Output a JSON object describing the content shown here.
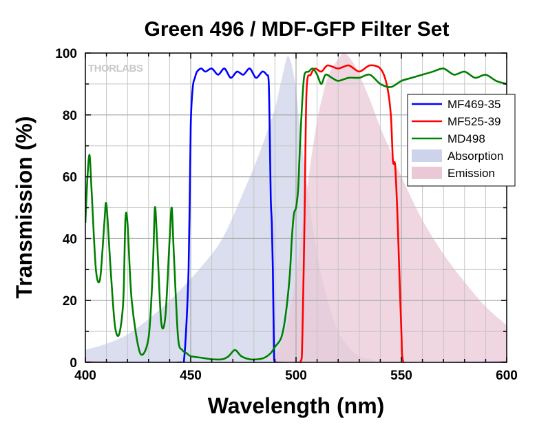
{
  "chart_data": {
    "type": "line",
    "title": "Green 496 / MDF-GFP Filter Set",
    "xlabel": "Wavelength (nm)",
    "ylabel": "Transmission (%)",
    "xlim": [
      400,
      600
    ],
    "ylim": [
      0,
      100
    ],
    "x_ticks": [
      400,
      450,
      500,
      550,
      600
    ],
    "y_ticks": [
      0,
      20,
      40,
      60,
      80,
      100
    ],
    "grid": true,
    "legend_position": "top-right",
    "logo": "THORLABS",
    "colors": {
      "MF469-35": "#0000ff",
      "MF525-39": "#ff0000",
      "MD498": "#008000",
      "Absorption": "#cdd3ea",
      "Emission": "#ebc8d6"
    },
    "series": [
      {
        "name": "Absorption",
        "kind": "area",
        "x": [
          400,
          410,
          420,
          430,
          440,
          450,
          460,
          465,
          470,
          475,
          480,
          485,
          488,
          490,
          492,
          494,
          496,
          498,
          500,
          502,
          505,
          510,
          515,
          520,
          525,
          530,
          535,
          538
        ],
        "y": [
          4,
          6,
          9,
          14,
          20,
          27,
          35,
          40,
          47,
          55,
          63,
          72,
          78,
          82,
          88,
          94,
          99,
          96,
          88,
          75,
          58,
          35,
          20,
          10,
          5,
          2,
          1,
          0
        ]
      },
      {
        "name": "Emission",
        "kind": "area",
        "x": [
          490,
          495,
          500,
          505,
          510,
          515,
          520,
          523,
          527,
          530,
          535,
          540,
          545,
          550,
          560,
          570,
          580,
          590,
          600
        ],
        "y": [
          2,
          10,
          28,
          55,
          78,
          92,
          98,
          100,
          97,
          93,
          85,
          76,
          68,
          60,
          46,
          35,
          26,
          18,
          12
        ]
      },
      {
        "name": "MF469-35",
        "kind": "line",
        "x": [
          400,
          445,
          447,
          449,
          450,
          451,
          452,
          453,
          455,
          457,
          460,
          463,
          466,
          469,
          472,
          475,
          478,
          481,
          484,
          486,
          487,
          487.5,
          488,
          488.5,
          489,
          489.5,
          490,
          600
        ],
        "y": [
          0,
          0,
          2,
          30,
          76,
          89,
          92,
          94,
          95,
          94,
          95,
          93,
          95,
          92,
          94,
          93,
          95,
          92,
          94,
          93,
          91,
          75,
          53,
          45,
          30,
          5,
          0,
          0
        ]
      },
      {
        "name": "MF525-39",
        "kind": "line",
        "x": [
          400,
          502,
          503,
          504,
          505,
          507,
          509,
          512,
          515,
          520,
          525,
          530,
          535,
          540,
          543,
          545,
          546,
          547,
          548,
          549,
          550,
          551,
          600
        ],
        "y": [
          0,
          0,
          8,
          45,
          88,
          93,
          95,
          94,
          96,
          95,
          96,
          94,
          96,
          95,
          90,
          80,
          65,
          64,
          50,
          30,
          10,
          0,
          0
        ]
      },
      {
        "name": "MD498",
        "kind": "line",
        "x": [
          400,
          401,
          402,
          403,
          405,
          407,
          409,
          410,
          412,
          414,
          416,
          418,
          419,
          420,
          422,
          426,
          430,
          432,
          433,
          434,
          436,
          438,
          440,
          441,
          442,
          444,
          446,
          448,
          450,
          455,
          460,
          465,
          468,
          471,
          474,
          478,
          482,
          485,
          488,
          490,
          493,
          495,
          497,
          498,
          499,
          500,
          501,
          502,
          503,
          504,
          506,
          508,
          510,
          512,
          514,
          517,
          520,
          525,
          530,
          535,
          540,
          545,
          550,
          555,
          560,
          565,
          570,
          575,
          580,
          585,
          590,
          595,
          600
        ],
        "y": [
          45,
          60,
          67,
          55,
          30,
          27,
          45,
          51,
          30,
          12,
          9,
          20,
          46,
          45,
          20,
          3,
          8,
          30,
          50,
          40,
          13,
          15,
          40,
          50,
          35,
          8,
          4,
          3,
          2,
          1.5,
          1,
          1,
          2,
          4,
          2,
          1,
          1,
          1.5,
          3,
          5,
          8,
          15,
          28,
          40,
          48,
          50,
          56,
          72,
          85,
          93,
          94,
          95,
          93,
          90,
          93,
          92,
          91,
          92,
          92,
          93,
          90,
          89,
          91,
          92,
          93,
          94,
          95,
          93,
          94,
          92,
          93,
          91,
          90
        ]
      }
    ]
  }
}
